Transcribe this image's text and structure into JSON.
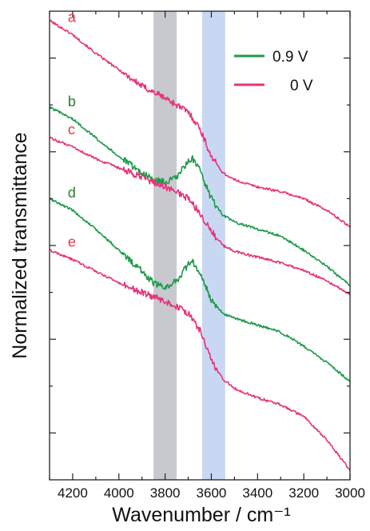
{
  "chart_data": {
    "type": "line",
    "xlabel": "Wavenumber / cm⁻¹",
    "ylabel": "Normalized transmittance",
    "xlim": [
      4300,
      3000
    ],
    "x_reversed": true,
    "x_ticks": [
      "4200",
      "4000",
      "3800",
      "3600",
      "3400",
      "3200",
      "3000"
    ],
    "y_tick_labels_shown": false,
    "grid": false,
    "legend_position": "top-right",
    "legend": [
      {
        "label": "0.9 V",
        "color": "#1f9a4a"
      },
      {
        "label": "0 V",
        "color": "#e6337a"
      }
    ],
    "highlight_bands": [
      {
        "x_range": [
          3850,
          3750
        ],
        "color": "#c7c9cf"
      },
      {
        "x_range": [
          3640,
          3540
        ],
        "color": "#c9d8f2"
      }
    ],
    "series": [
      {
        "name": "a",
        "label_color": "#e63946",
        "color": "#e6337a",
        "x": [
          4300,
          4200,
          4100,
          4000,
          3900,
          3800,
          3750,
          3700,
          3650,
          3600,
          3550,
          3500,
          3400,
          3300,
          3200,
          3100,
          3000
        ],
        "y": [
          0.98,
          0.95,
          0.91,
          0.875,
          0.84,
          0.815,
          0.8,
          0.785,
          0.75,
          0.69,
          0.655,
          0.64,
          0.625,
          0.615,
          0.6,
          0.575,
          0.54
        ]
      },
      {
        "name": "b",
        "label_color": "#2e7d32",
        "color": "#1f9a4a",
        "x": [
          4300,
          4200,
          4100,
          4000,
          3900,
          3850,
          3800,
          3750,
          3700,
          3680,
          3650,
          3600,
          3550,
          3500,
          3400,
          3300,
          3200,
          3100,
          3000
        ],
        "y": [
          0.795,
          0.77,
          0.73,
          0.69,
          0.655,
          0.64,
          0.635,
          0.645,
          0.68,
          0.685,
          0.66,
          0.6,
          0.565,
          0.55,
          0.535,
          0.52,
          0.49,
          0.455,
          0.415
        ]
      },
      {
        "name": "c",
        "label_color": "#e63946",
        "color": "#e6337a",
        "x": [
          4300,
          4200,
          4100,
          4000,
          3900,
          3800,
          3750,
          3700,
          3650,
          3600,
          3550,
          3500,
          3400,
          3300,
          3200,
          3100,
          3000
        ],
        "y": [
          0.73,
          0.71,
          0.685,
          0.665,
          0.645,
          0.625,
          0.615,
          0.6,
          0.57,
          0.53,
          0.5,
          0.488,
          0.475,
          0.463,
          0.447,
          0.425,
          0.395
        ]
      },
      {
        "name": "d",
        "label_color": "#2e7d32",
        "color": "#1f9a4a",
        "x": [
          4300,
          4200,
          4100,
          4000,
          3900,
          3850,
          3800,
          3750,
          3700,
          3680,
          3650,
          3600,
          3550,
          3500,
          3400,
          3300,
          3200,
          3100,
          3000
        ],
        "y": [
          0.6,
          0.575,
          0.535,
          0.49,
          0.445,
          0.42,
          0.41,
          0.425,
          0.46,
          0.465,
          0.44,
          0.385,
          0.355,
          0.345,
          0.33,
          0.315,
          0.285,
          0.25,
          0.21
        ]
      },
      {
        "name": "e",
        "label_color": "#e63946",
        "color": "#e6337a",
        "x": [
          4300,
          4200,
          4100,
          4000,
          3900,
          3800,
          3750,
          3700,
          3650,
          3600,
          3550,
          3500,
          3400,
          3300,
          3200,
          3100,
          3000
        ],
        "y": [
          0.49,
          0.47,
          0.445,
          0.42,
          0.4,
          0.38,
          0.37,
          0.355,
          0.32,
          0.255,
          0.215,
          0.195,
          0.175,
          0.16,
          0.135,
          0.085,
          0.02
        ]
      }
    ]
  }
}
